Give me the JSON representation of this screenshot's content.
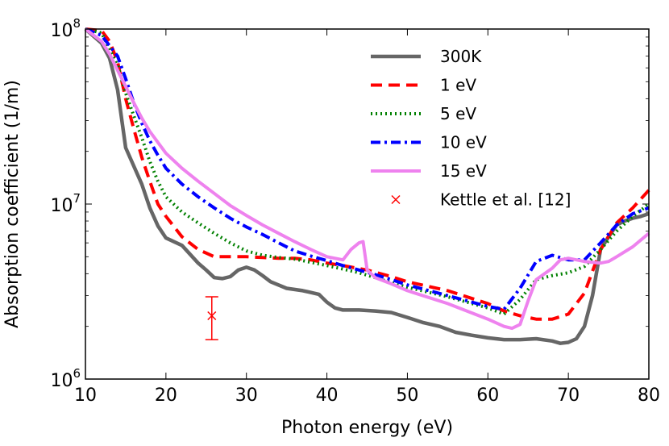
{
  "chart_data": {
    "type": "line",
    "title": "",
    "xlabel": "Photon energy (eV)",
    "ylabel": "Absorption coefficient (1/m)",
    "xlim": [
      10,
      80
    ],
    "ylim": [
      1000000,
      100000000
    ],
    "yscale": "log",
    "x_ticks": [
      "10",
      "20",
      "30",
      "40",
      "50",
      "60",
      "70",
      "80"
    ],
    "y_ticks": [
      {
        "base": "10",
        "exp": "6"
      },
      {
        "base": "10",
        "exp": "7"
      },
      {
        "base": "10",
        "exp": "8"
      }
    ],
    "legend_position": "top-right",
    "series": [
      {
        "name": "300K",
        "color": "#666666",
        "style": "solid",
        "points": [
          [
            10,
            100000000
          ],
          [
            12,
            83000000
          ],
          [
            13,
            68000000
          ],
          [
            14,
            45000000
          ],
          [
            15,
            21000000
          ],
          [
            17,
            13000000
          ],
          [
            18,
            9500000
          ],
          [
            19,
            7500000
          ],
          [
            20,
            6400000
          ],
          [
            22,
            5800000
          ],
          [
            24,
            4600000
          ],
          [
            25,
            4200000
          ],
          [
            26,
            3800000
          ],
          [
            27,
            3750000
          ],
          [
            28,
            3850000
          ],
          [
            29,
            4200000
          ],
          [
            30,
            4350000
          ],
          [
            31,
            4200000
          ],
          [
            32,
            3900000
          ],
          [
            33,
            3600000
          ],
          [
            35,
            3300000
          ],
          [
            37,
            3200000
          ],
          [
            39,
            3050000
          ],
          [
            40,
            2750000
          ],
          [
            41,
            2550000
          ],
          [
            42,
            2480000
          ],
          [
            44,
            2480000
          ],
          [
            46,
            2450000
          ],
          [
            48,
            2400000
          ],
          [
            50,
            2250000
          ],
          [
            52,
            2100000
          ],
          [
            54,
            2000000
          ],
          [
            56,
            1850000
          ],
          [
            58,
            1780000
          ],
          [
            60,
            1720000
          ],
          [
            62,
            1680000
          ],
          [
            64,
            1680000
          ],
          [
            66,
            1700000
          ],
          [
            68,
            1650000
          ],
          [
            69,
            1600000
          ],
          [
            70,
            1620000
          ],
          [
            71,
            1700000
          ],
          [
            72,
            2000000
          ],
          [
            73,
            3000000
          ],
          [
            74,
            5500000
          ],
          [
            75,
            6500000
          ],
          [
            76,
            7600000
          ],
          [
            77,
            8000000
          ],
          [
            78,
            8300000
          ],
          [
            79,
            8500000
          ],
          [
            80,
            8800000
          ]
        ]
      },
      {
        "name": "1 eV",
        "color": "#ff0000",
        "style": "dashed",
        "points": [
          [
            10,
            100000000
          ],
          [
            12,
            98000000
          ],
          [
            13,
            85000000
          ],
          [
            14,
            65000000
          ],
          [
            15,
            40000000
          ],
          [
            16,
            27000000
          ],
          [
            17,
            18500000
          ],
          [
            18,
            13500000
          ],
          [
            19,
            10000000
          ],
          [
            20,
            8500000
          ],
          [
            22,
            6500000
          ],
          [
            24,
            5500000
          ],
          [
            26,
            5000000
          ],
          [
            28,
            5000000
          ],
          [
            30,
            5000000
          ],
          [
            32,
            4950000
          ],
          [
            34,
            4900000
          ],
          [
            36,
            4900000
          ],
          [
            38,
            4800000
          ],
          [
            40,
            4600000
          ],
          [
            42,
            4450000
          ],
          [
            45,
            4200000
          ],
          [
            48,
            3850000
          ],
          [
            50,
            3600000
          ],
          [
            55,
            3200000
          ],
          [
            60,
            2700000
          ],
          [
            62,
            2450000
          ],
          [
            64,
            2300000
          ],
          [
            66,
            2200000
          ],
          [
            68,
            2200000
          ],
          [
            70,
            2350000
          ],
          [
            72,
            3100000
          ],
          [
            74,
            5500000
          ],
          [
            76,
            7800000
          ],
          [
            78,
            9500000
          ],
          [
            80,
            12000000
          ]
        ]
      },
      {
        "name": "5 eV",
        "color": "#008000",
        "style": "dotted",
        "points": [
          [
            10,
            100000000
          ],
          [
            12,
            95000000
          ],
          [
            14,
            62000000
          ],
          [
            15,
            43000000
          ],
          [
            16,
            32000000
          ],
          [
            17,
            24000000
          ],
          [
            18,
            17500000
          ],
          [
            19,
            13500000
          ],
          [
            20,
            11000000
          ],
          [
            22,
            9000000
          ],
          [
            24,
            7800000
          ],
          [
            26,
            6800000
          ],
          [
            28,
            6000000
          ],
          [
            30,
            5400000
          ],
          [
            32,
            5100000
          ],
          [
            34,
            4950000
          ],
          [
            36,
            4850000
          ],
          [
            38,
            4650000
          ],
          [
            40,
            4450000
          ],
          [
            42,
            4250000
          ],
          [
            44,
            4050000
          ],
          [
            46,
            3800000
          ],
          [
            48,
            3550000
          ],
          [
            50,
            3350000
          ],
          [
            55,
            2950000
          ],
          [
            60,
            2550000
          ],
          [
            62,
            2350000
          ],
          [
            64,
            2850000
          ],
          [
            66,
            3700000
          ],
          [
            68,
            3900000
          ],
          [
            70,
            4050000
          ],
          [
            72,
            4400000
          ],
          [
            74,
            5500000
          ],
          [
            76,
            7000000
          ],
          [
            78,
            8500000
          ],
          [
            80,
            10000000
          ]
        ]
      },
      {
        "name": "10 eV",
        "color": "#0000ff",
        "style": "dashdot",
        "points": [
          [
            10,
            100000000
          ],
          [
            12,
            92000000
          ],
          [
            14,
            70000000
          ],
          [
            15,
            52000000
          ],
          [
            16,
            38000000
          ],
          [
            17,
            29000000
          ],
          [
            18,
            23000000
          ],
          [
            19,
            19000000
          ],
          [
            20,
            16000000
          ],
          [
            22,
            13000000
          ],
          [
            24,
            11000000
          ],
          [
            26,
            9500000
          ],
          [
            28,
            8300000
          ],
          [
            30,
            7400000
          ],
          [
            32,
            6700000
          ],
          [
            34,
            6000000
          ],
          [
            36,
            5400000
          ],
          [
            38,
            5050000
          ],
          [
            40,
            4750000
          ],
          [
            42,
            4450000
          ],
          [
            44,
            4200000
          ],
          [
            46,
            3950000
          ],
          [
            48,
            3700000
          ],
          [
            50,
            3450000
          ],
          [
            55,
            3000000
          ],
          [
            60,
            2600000
          ],
          [
            62,
            2500000
          ],
          [
            64,
            3300000
          ],
          [
            66,
            4700000
          ],
          [
            68,
            5100000
          ],
          [
            70,
            4800000
          ],
          [
            72,
            4800000
          ],
          [
            74,
            6000000
          ],
          [
            76,
            7600000
          ],
          [
            78,
            8800000
          ],
          [
            80,
            9500000
          ]
        ]
      },
      {
        "name": "15 eV",
        "color": "#ee82ee",
        "style": "solid",
        "points": [
          [
            10,
            100000000
          ],
          [
            12,
            85000000
          ],
          [
            13,
            72000000
          ],
          [
            14,
            58000000
          ],
          [
            15,
            47000000
          ],
          [
            16,
            38000000
          ],
          [
            17,
            31000000
          ],
          [
            18,
            26000000
          ],
          [
            19,
            22500000
          ],
          [
            20,
            19500000
          ],
          [
            22,
            16000000
          ],
          [
            24,
            13500000
          ],
          [
            26,
            11500000
          ],
          [
            28,
            9800000
          ],
          [
            30,
            8600000
          ],
          [
            32,
            7600000
          ],
          [
            34,
            6800000
          ],
          [
            36,
            6100000
          ],
          [
            38,
            5500000
          ],
          [
            40,
            5000000
          ],
          [
            42,
            4800000
          ],
          [
            43,
            5500000
          ],
          [
            44,
            6000000
          ],
          [
            44.5,
            6100000
          ],
          [
            45,
            4200000
          ],
          [
            46,
            3800000
          ],
          [
            48,
            3500000
          ],
          [
            50,
            3200000
          ],
          [
            55,
            2700000
          ],
          [
            60,
            2200000
          ],
          [
            62,
            2000000
          ],
          [
            63,
            1950000
          ],
          [
            64,
            2050000
          ],
          [
            65,
            2800000
          ],
          [
            66,
            3700000
          ],
          [
            68,
            4300000
          ],
          [
            69,
            4800000
          ],
          [
            70,
            4900000
          ],
          [
            72,
            4700000
          ],
          [
            74,
            4600000
          ],
          [
            75,
            4700000
          ],
          [
            76,
            5000000
          ],
          [
            78,
            5700000
          ],
          [
            80,
            6800000
          ]
        ]
      }
    ],
    "reference": {
      "name": "Kettle et al. [12]",
      "color": "#ff0000",
      "marker": "x",
      "x": 25.7,
      "y": 2300000,
      "y_err_low": 1680000,
      "y_err_high": 2950000
    }
  }
}
